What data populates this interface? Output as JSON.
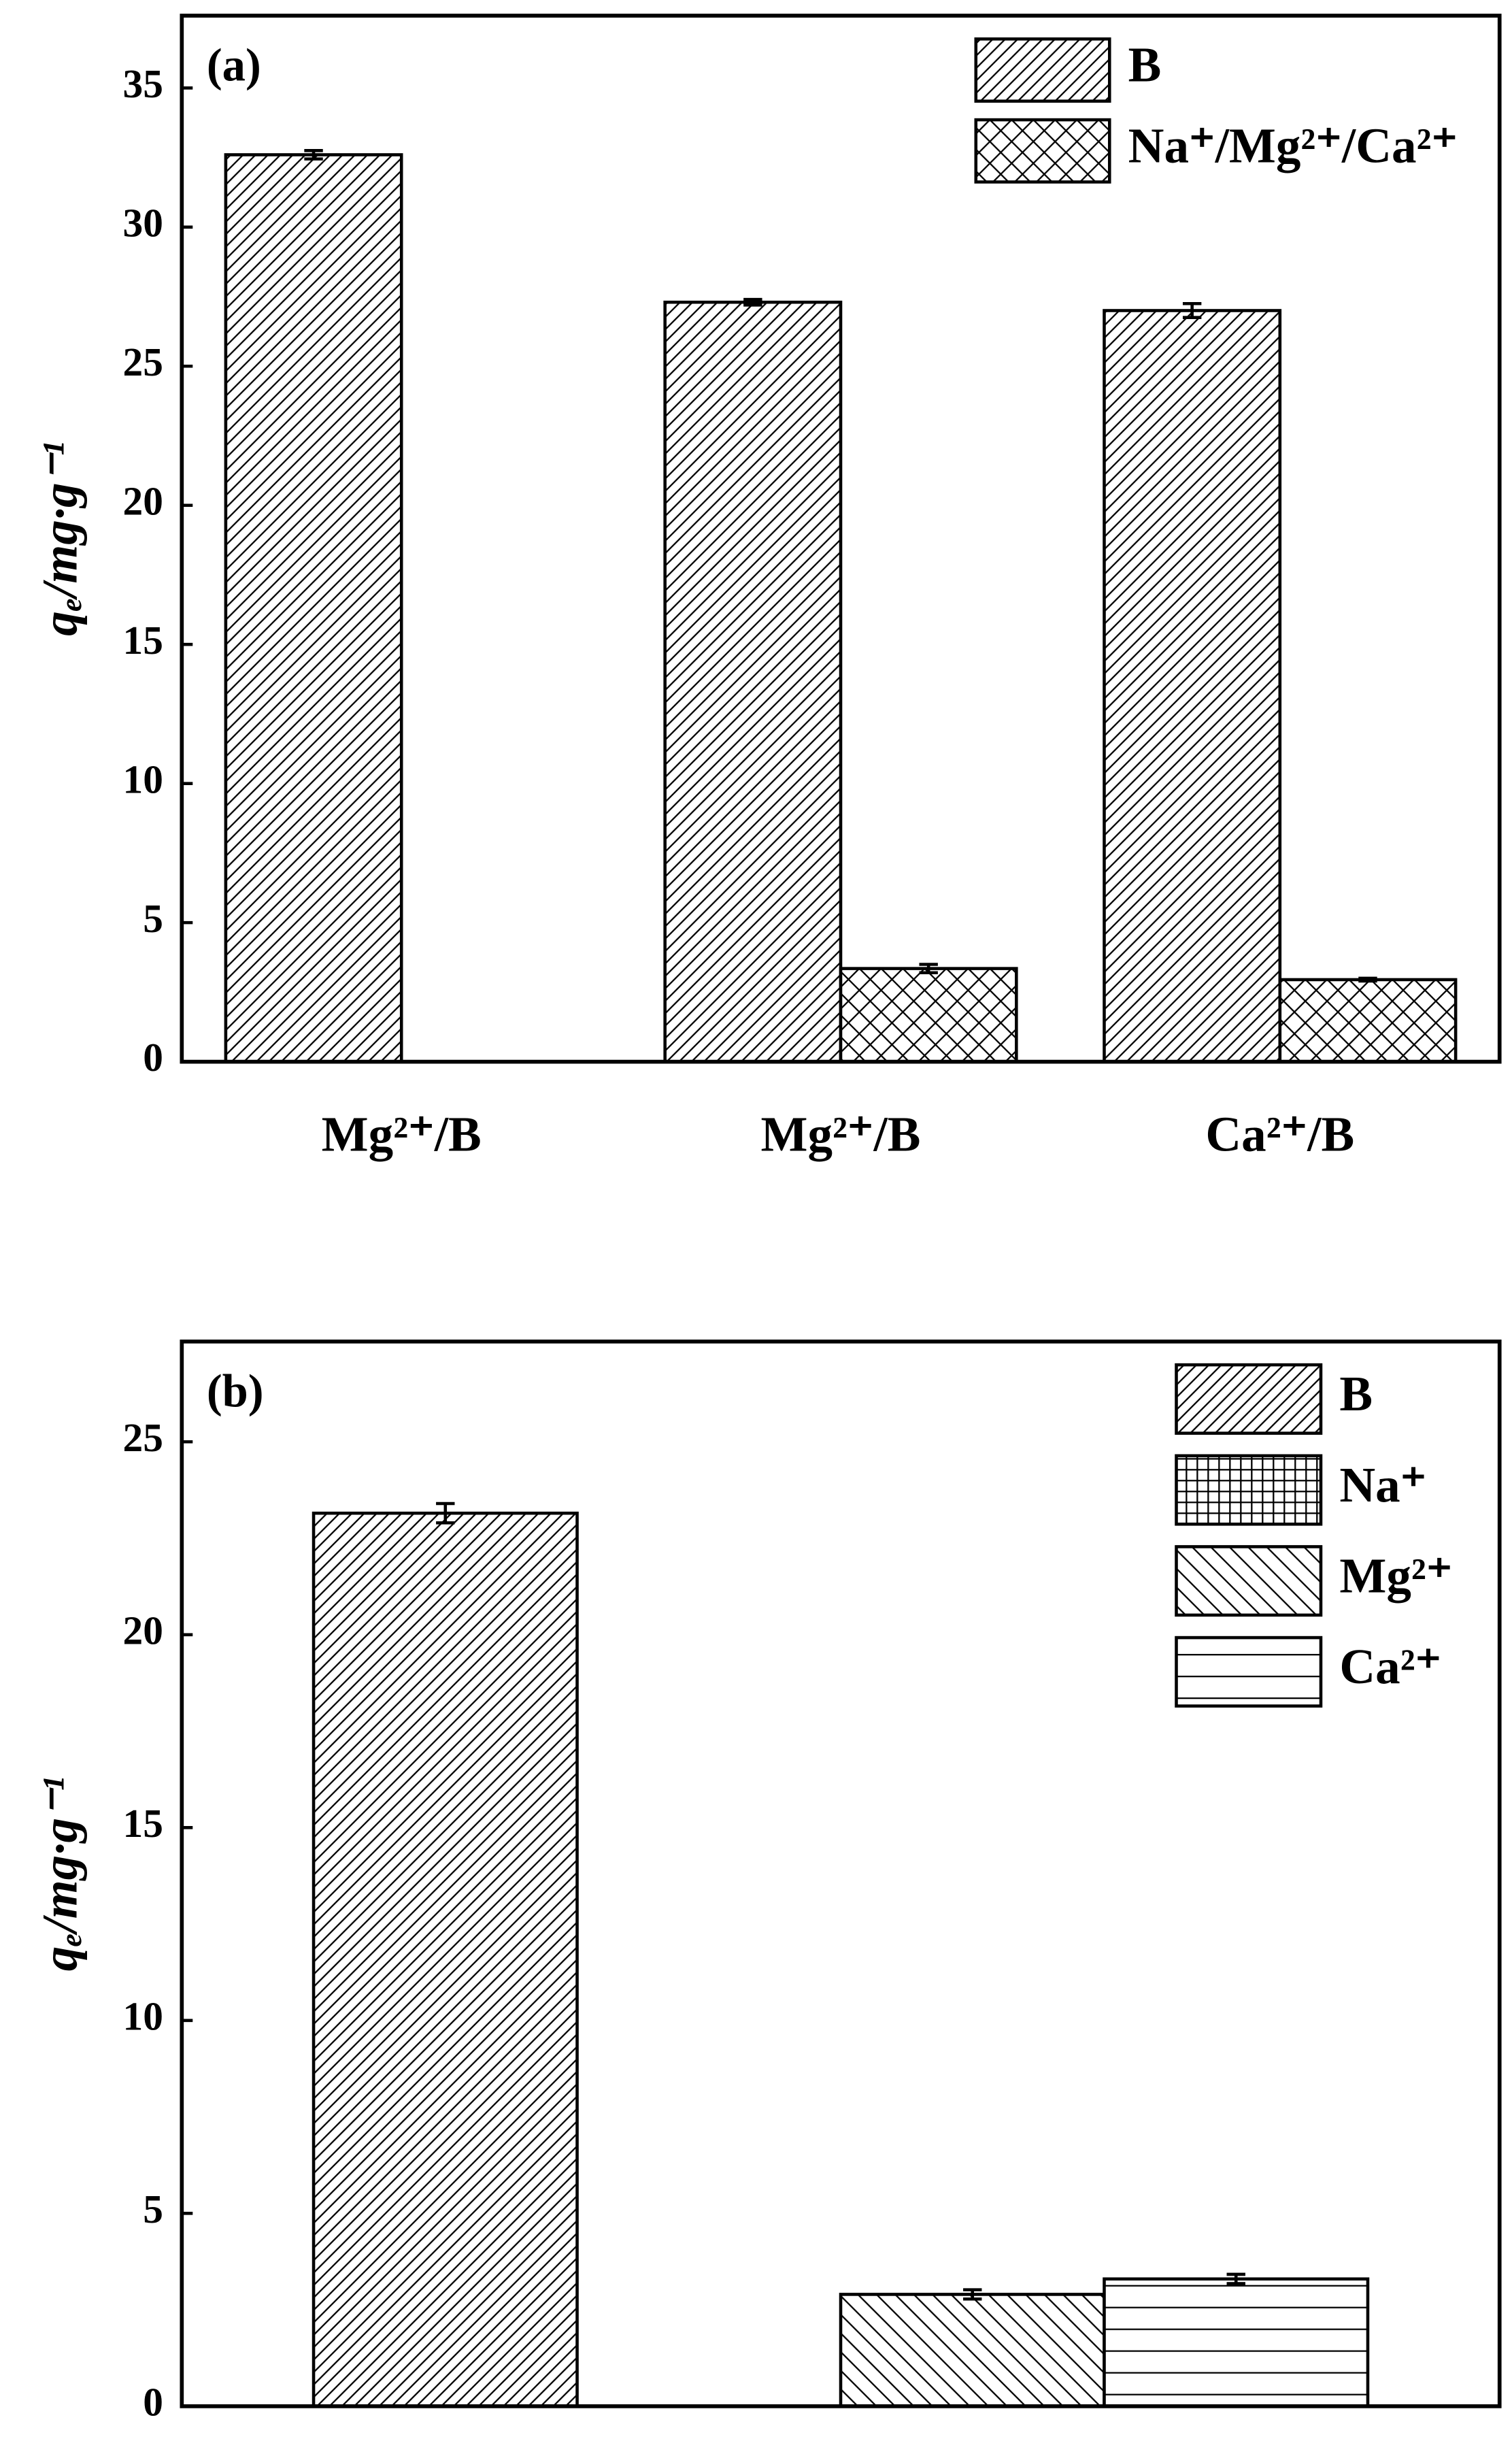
{
  "chart_data": [
    {
      "type": "bar",
      "panel_label": "(a)",
      "ylabel": "qₑ/mg·g⁻¹",
      "categories": [
        "Mg²⁺/B",
        "Mg²⁺/B",
        "Ca²⁺/B"
      ],
      "series": [
        {
          "name": "B",
          "color": "#000000",
          "hatch": "//",
          "values": [
            32.6,
            27.3,
            27.0
          ],
          "errors": [
            0.15,
            0.1,
            0.25
          ]
        },
        {
          "name": "Na⁺/Mg²⁺/Ca²⁺",
          "color": "#000000",
          "hatch": "xx",
          "values": [
            null,
            3.35,
            2.95
          ],
          "errors": [
            null,
            0.15,
            0.05
          ]
        }
      ],
      "ylim": [
        0,
        37.6
      ],
      "yticks": [
        0,
        5,
        10,
        15,
        20,
        25,
        30,
        35
      ],
      "legend": "upper right"
    },
    {
      "type": "bar",
      "panel_label": "(b)",
      "ylabel": "qₑ/mg·g⁻¹",
      "categories": [
        null
      ],
      "series": [
        {
          "name": "B",
          "color": "#000000",
          "hatch": "//",
          "values": [
            23.15
          ],
          "errors": [
            0.25
          ]
        },
        {
          "name": "Na⁺",
          "color": "#000000",
          "hatch": "++",
          "values": [
            null
          ],
          "errors": [
            null
          ]
        },
        {
          "name": "Mg²⁺",
          "color": "#000000",
          "hatch": "\\\\",
          "values": [
            2.9
          ],
          "errors": [
            0.12
          ]
        },
        {
          "name": "Ca²⁺",
          "color": "#000000",
          "hatch": "--",
          "values": [
            3.3
          ],
          "errors": [
            0.12
          ]
        }
      ],
      "ylim": [
        0,
        27.6
      ],
      "yticks": [
        0,
        5,
        10,
        15,
        20,
        25
      ],
      "legend": "upper right"
    }
  ]
}
